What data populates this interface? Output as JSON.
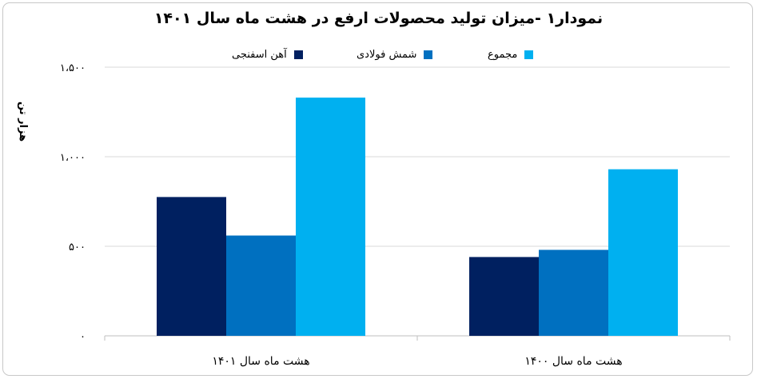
{
  "chart_data": {
    "type": "bar",
    "title": "نمودار۱ -میزان تولید محصولات ارفع در هشت ماه سال ۱۴۰۱",
    "ylabel": "هزار تن",
    "xlabel": "",
    "categories": [
      "هشت ماه سال ۱۴۰۱",
      "هشت ماه سال ۱۴۰۰"
    ],
    "series": [
      {
        "name": "آهن اسفنجی",
        "values": [
          775,
          440
        ],
        "color": "#002060"
      },
      {
        "name": "شمش فولادی",
        "values": [
          560,
          480
        ],
        "color": "#0070C0"
      },
      {
        "name": "مجموع",
        "values": [
          1330,
          930
        ],
        "color": "#00B0F0"
      }
    ],
    "ylim": [
      0,
      1500
    ],
    "yticks": [
      {
        "value": 0,
        "label": "۰"
      },
      {
        "value": 500,
        "label": "۵۰۰"
      },
      {
        "value": 1000,
        "label": "۱،۰۰۰"
      },
      {
        "value": 1500,
        "label": "۱،۵۰۰"
      }
    ],
    "grid": true,
    "legend_position": "top"
  }
}
